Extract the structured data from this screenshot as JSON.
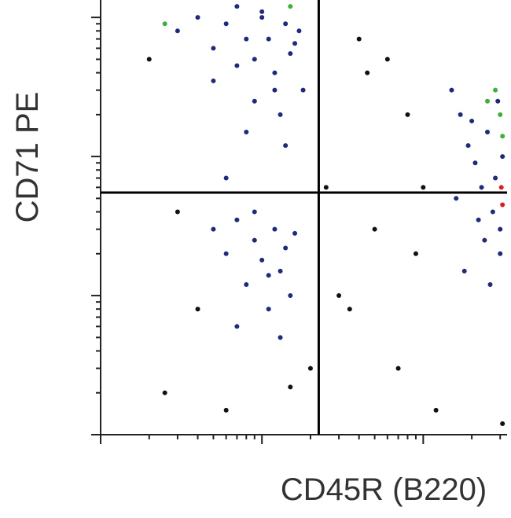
{
  "chart_data": {
    "type": "scatter",
    "xlabel": "CD45R (B220)",
    "ylabel": "CD71 PE",
    "log_x": true,
    "log_y": true,
    "xlim": [
      1,
      320
    ],
    "ylim": [
      1,
      1300
    ],
    "xticks": [
      1,
      2,
      3,
      4,
      5,
      6,
      7,
      8,
      9,
      10,
      20,
      30,
      40,
      50,
      60,
      70,
      80,
      90,
      100,
      200,
      300
    ],
    "yticks": [
      1,
      2,
      3,
      4,
      5,
      6,
      7,
      8,
      9,
      10,
      20,
      30,
      40,
      50,
      60,
      70,
      80,
      90,
      100,
      200,
      300,
      400,
      500,
      600,
      700,
      800,
      900,
      1000
    ],
    "quadrant_x": 22.5,
    "quadrant_y": 55,
    "series": [
      {
        "color": "#1f2a7a",
        "x": [
          3,
          4,
          5,
          6,
          7,
          8,
          9,
          10,
          12,
          14,
          16,
          18,
          5,
          7,
          9,
          11,
          13,
          15,
          8,
          10,
          12,
          6,
          14,
          17,
          5,
          6,
          7,
          8,
          9,
          10,
          11,
          12,
          13,
          14,
          15,
          16,
          7,
          9,
          11,
          13,
          150,
          170,
          190,
          210,
          230,
          250,
          270,
          290,
          300,
          310,
          160,
          200,
          240,
          280,
          180,
          220,
          260,
          300
        ],
        "y": [
          800,
          1000,
          600,
          900,
          1200,
          700,
          500,
          1100,
          400,
          900,
          650,
          300,
          350,
          450,
          250,
          700,
          200,
          550,
          150,
          1000,
          300,
          70,
          120,
          800,
          30,
          20,
          35,
          12,
          25,
          18,
          8,
          30,
          15,
          22,
          10,
          28,
          6,
          40,
          14,
          5,
          300,
          200,
          120,
          90,
          60,
          150,
          40,
          250,
          30,
          100,
          50,
          180,
          25,
          70,
          15,
          35,
          12,
          20
        ]
      },
      {
        "color": "#111111",
        "x": [
          2,
          3,
          4,
          20,
          40,
          60,
          80,
          100,
          50,
          30,
          70,
          120,
          2.5,
          45,
          90,
          25,
          6,
          15,
          35,
          310
        ],
        "y": [
          500,
          40,
          8,
          3,
          700,
          500,
          200,
          60,
          30,
          10,
          3,
          1.5,
          2,
          400,
          20,
          60,
          1.5,
          2.2,
          8,
          1.2
        ]
      },
      {
        "color": "#3fae3f",
        "x": [
          280,
          300,
          310,
          250,
          2.5,
          15
        ],
        "y": [
          300,
          200,
          140,
          250,
          900,
          1200
        ]
      },
      {
        "color": "#d62020",
        "x": [
          305,
          310
        ],
        "y": [
          60,
          45
        ]
      }
    ]
  }
}
